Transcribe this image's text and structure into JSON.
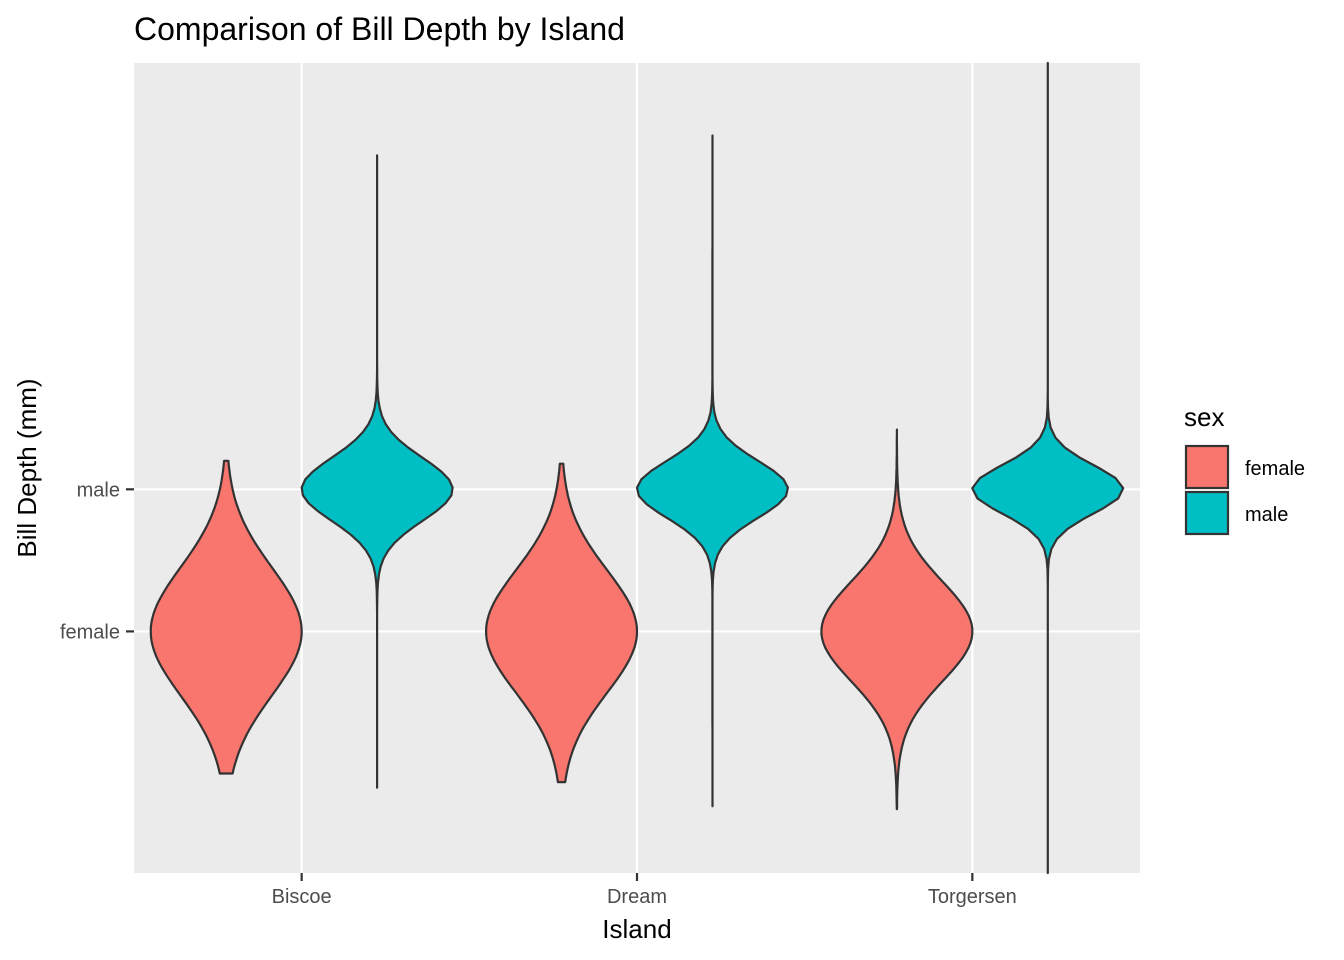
{
  "chart_data": {
    "type": "violin",
    "title": "Comparison of Bill Depth by Island",
    "xlabel": "Island",
    "ylabel": "Bill Depth (mm)",
    "categories": [
      "Biscoe",
      "Dream",
      "Torgersen"
    ],
    "y_ticks": [
      "female",
      "male"
    ],
    "grid": true,
    "legend": {
      "title": "sex",
      "placement": "right",
      "entries": [
        {
          "label": "female",
          "color": "#F8766D"
        },
        {
          "label": "male",
          "color": "#00BFC4"
        }
      ]
    },
    "series": [
      {
        "name": "female",
        "color": "#F8766D",
        "violins": [
          {
            "category": "Biscoe",
            "center": 1,
            "min": 0.0,
            "max": 2.2,
            "spread": 0.45
          },
          {
            "category": "Dream",
            "center": 1,
            "min": -0.06,
            "max": 2.18,
            "spread": 0.43
          },
          {
            "category": "Torgersen",
            "center": 1,
            "min": -0.25,
            "max": 2.42,
            "spread": 0.35
          }
        ]
      },
      {
        "name": "male",
        "color": "#00BFC4",
        "violins": [
          {
            "category": "Biscoe",
            "center": 2,
            "min": -0.1,
            "max": 4.35,
            "spread": 0.22
          },
          {
            "category": "Dream",
            "center": 2,
            "min": -0.23,
            "max": 4.49,
            "spread": 0.2
          },
          {
            "category": "Torgersen",
            "center": 2,
            "min": -0.7,
            "max": 5.0,
            "spread": 0.17
          }
        ]
      }
    ]
  }
}
